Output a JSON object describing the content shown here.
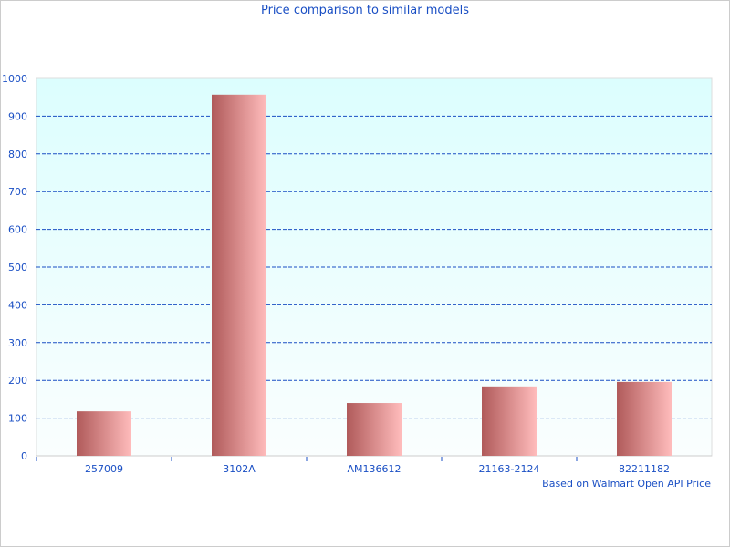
{
  "chart_data": {
    "type": "bar",
    "title": "Price comparison to similar models",
    "categories": [
      "257009",
      "3102A",
      "AM136612",
      "21163-2124",
      "82211182"
    ],
    "values": [
      118,
      957,
      140,
      184,
      196
    ],
    "ylim": [
      0,
      1000
    ],
    "yticks": [
      0,
      100,
      200,
      300,
      400,
      500,
      600,
      700,
      800,
      900,
      1000
    ],
    "grid": true,
    "annotation": "Based on Walmart Open API Price",
    "colors": {
      "bar_dark": "#b05a5a",
      "bar_light": "#ffbcbc",
      "bg_top": "#dcfefe",
      "bg_bottom": "#fafefe",
      "grid": "#1a4fc4",
      "text": "#1a4fc4"
    }
  }
}
